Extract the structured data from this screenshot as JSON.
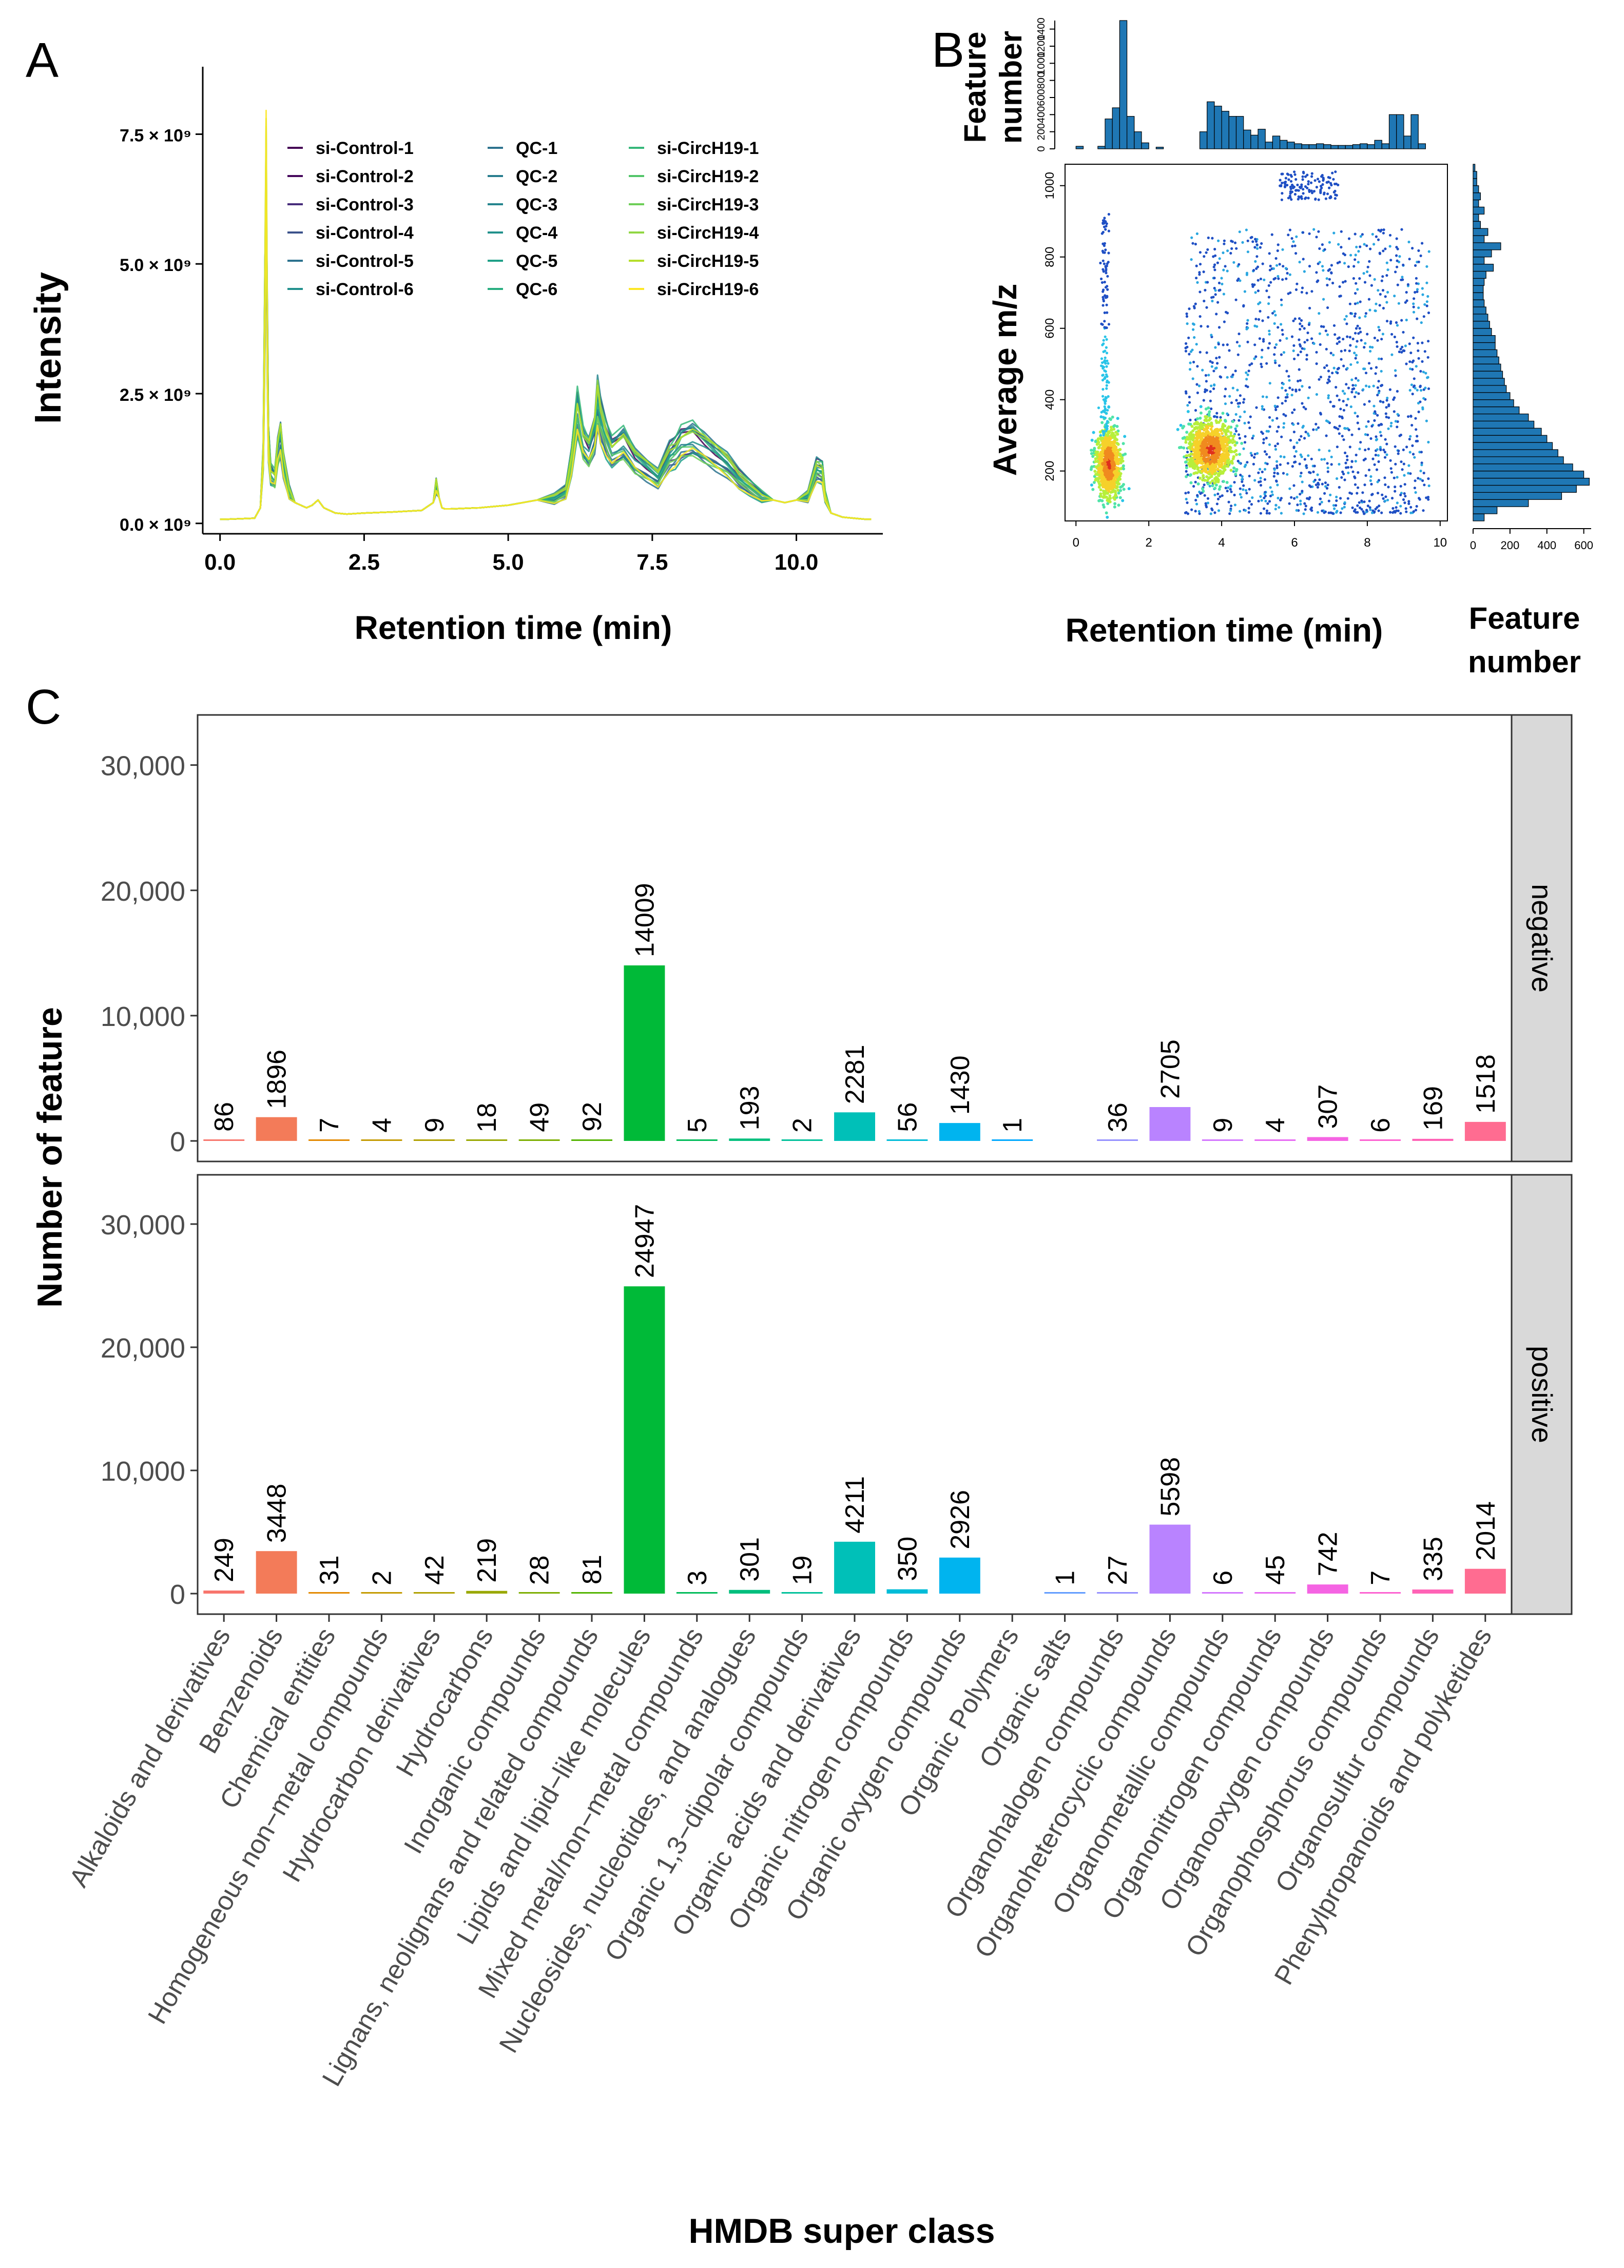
{
  "panels": {
    "a_label": "A",
    "b_label": "B",
    "c_label": "C"
  },
  "colors": {
    "purple_dark": "#440154",
    "purple": "#482878",
    "blue_dark": "#3e4989",
    "blue": "#31688e",
    "teal_dark": "#26828e",
    "teal": "#1f9e89",
    "green": "#35b779",
    "green_light": "#6ece58",
    "lime": "#b5de2b",
    "yellow": "#fde725",
    "hist_fill": "#1f77b4",
    "strip_bg": "#d9d9d9"
  },
  "chart_data": [
    {
      "id": "A",
      "type": "line",
      "title": "",
      "xlabel": "Retention time  (min)",
      "ylabel": "Intensity",
      "xlim": [
        -0.3,
        11.5
      ],
      "ylim": [
        -0.2,
        8.8
      ],
      "x_ticks": [
        0.0,
        2.5,
        5.0,
        7.5,
        10.0
      ],
      "x_tick_labels": [
        "0.0",
        "2.5",
        "5.0",
        "7.5",
        "10.0"
      ],
      "y_ticks": [
        0.0,
        2.5,
        5.0,
        7.5
      ],
      "y_tick_labels": [
        "0.0 × 10⁹",
        "2.5 × 10⁹",
        "5.0 × 10⁹",
        "7.5 × 10⁹"
      ],
      "y_unit": "× 10⁹",
      "legend": {
        "columns": [
          [
            "si-Control-1",
            "si-Control-2",
            "si-Control-3",
            "si-Control-4",
            "si-Control-5",
            "si-Control-6"
          ],
          [
            "QC-1",
            "QC-2",
            "QC-3",
            "QC-4",
            "QC-5",
            "QC-6"
          ],
          [
            "si-CircH19-1",
            "si-CircH19-2",
            "si-CircH19-3",
            "si-CircH19-4",
            "si-CircH19-5",
            "si-CircH19-6"
          ]
        ],
        "colors": [
          [
            "#440154",
            "#46085c",
            "#472d7b",
            "#3b528b",
            "#2c728e",
            "#21908d"
          ],
          [
            "#2c728e",
            "#287d8e",
            "#25858e",
            "#21918c",
            "#1fa088",
            "#28ae80"
          ],
          [
            "#35b779",
            "#52c569",
            "#6ece58",
            "#90d743",
            "#b5de2b",
            "#fde725"
          ]
        ]
      },
      "series_profile": {
        "x": [
          0.0,
          0.1,
          0.6,
          0.7,
          0.75,
          0.78,
          0.8,
          0.82,
          0.84,
          0.88,
          0.95,
          1.0,
          1.05,
          1.1,
          1.2,
          1.3,
          1.5,
          1.6,
          1.7,
          1.8,
          2.0,
          2.2,
          2.5,
          3.0,
          3.5,
          3.7,
          3.75,
          3.8,
          3.85,
          3.9,
          4.0,
          4.5,
          5.0,
          5.5,
          5.8,
          6.0,
          6.1,
          6.2,
          6.3,
          6.4,
          6.5,
          6.55,
          6.6,
          6.7,
          6.8,
          7.0,
          7.2,
          7.4,
          7.6,
          7.8,
          7.9,
          8.0,
          8.2,
          8.4,
          8.6,
          8.8,
          9.0,
          9.2,
          9.4,
          9.6,
          9.8,
          10.0,
          10.2,
          10.35,
          10.45,
          10.5,
          10.6,
          10.8,
          11.0,
          11.2,
          11.3
        ],
        "y": [
          0.08,
          0.08,
          0.1,
          0.3,
          1.5,
          5.0,
          7.8,
          4.0,
          1.8,
          1.1,
          1.0,
          1.6,
          1.9,
          1.3,
          0.7,
          0.4,
          0.3,
          0.35,
          0.45,
          0.3,
          0.2,
          0.18,
          0.2,
          0.22,
          0.25,
          0.4,
          0.85,
          0.5,
          0.3,
          0.28,
          0.28,
          0.3,
          0.35,
          0.45,
          0.55,
          0.7,
          1.4,
          2.5,
          1.8,
          1.6,
          2.0,
          2.7,
          2.3,
          1.9,
          1.6,
          1.8,
          1.4,
          1.2,
          1.0,
          1.5,
          1.6,
          1.8,
          1.9,
          1.7,
          1.5,
          1.3,
          1.0,
          0.8,
          0.6,
          0.45,
          0.4,
          0.45,
          0.6,
          1.2,
          1.15,
          0.6,
          0.2,
          0.12,
          0.1,
          0.08,
          0.08
        ]
      }
    },
    {
      "id": "B",
      "type": "scatter",
      "xlabel": "Retention time  (min)",
      "ylabel": "Average m/z",
      "xlim": [
        -0.3,
        10.2
      ],
      "ylim": [
        60,
        1060
      ],
      "x_ticks": [
        0,
        2,
        4,
        6,
        8,
        10
      ],
      "y_ticks": [
        200,
        400,
        600,
        800,
        1000
      ],
      "density_clusters": [
        {
          "rt": 0.9,
          "mz": 220,
          "sd_rt": 0.25,
          "sd_mz": 70
        },
        {
          "rt": 3.7,
          "mz": 260,
          "sd_rt": 0.45,
          "sd_mz": 60
        }
      ],
      "top_histogram": {
        "ylabel": "Feature number",
        "y_ticks": [
          0,
          200,
          400,
          600,
          800,
          1000,
          1200,
          1400
        ],
        "bin_width_min": 0.2,
        "counts": [
          30,
          0,
          0,
          30,
          350,
          480,
          1500,
          380,
          200,
          70,
          0,
          20,
          0,
          0,
          0,
          0,
          0,
          200,
          550,
          500,
          440,
          380,
          380,
          220,
          160,
          230,
          80,
          150,
          100,
          80,
          60,
          50,
          50,
          60,
          50,
          40,
          40,
          40,
          50,
          60,
          50,
          100,
          60,
          400,
          400,
          150,
          400,
          60
        ]
      },
      "right_histogram": {
        "xlabel": "Feature number",
        "x_ticks": [
          0,
          200,
          400,
          600
        ],
        "bin_width_mz": 20,
        "counts": [
          60,
          130,
          300,
          480,
          560,
          630,
          600,
          540,
          490,
          460,
          430,
          400,
          370,
          330,
          300,
          250,
          220,
          200,
          180,
          170,
          160,
          150,
          140,
          130,
          120,
          120,
          100,
          90,
          80,
          70,
          60,
          55,
          55,
          60,
          70,
          110,
          60,
          100,
          150,
          60,
          80,
          40,
          30,
          60,
          30,
          40,
          30,
          20,
          20,
          10
        ]
      },
      "right_axis_label_line1": "Feature",
      "right_axis_label_line2": "number",
      "top_axis_label_line1": "Feature",
      "top_axis_label_line2": "number"
    },
    {
      "id": "C",
      "type": "bar",
      "xlabel": "HMDB super class",
      "ylabel": "Number of feature",
      "ylim": [
        0,
        34000
      ],
      "y_ticks": [
        0,
        10000,
        20000,
        30000
      ],
      "y_tick_labels": [
        "0",
        "10,000",
        "20,000",
        "30,000"
      ],
      "categories": [
        "Alkaloids and derivatives",
        "Benzenoids",
        "Chemical entities",
        "Homogeneous non−metal compounds",
        "Hydrocarbon derivatives",
        "Hydrocarbons",
        "Inorganic compounds",
        "Lignans, neolignans and related compounds",
        "Lipids and lipid−like molecules",
        "Mixed metal/non−metal compounds",
        "Nucleosides, nucleotides, and analogues",
        "Organic 1,3−dipolar compounds",
        "Organic acids and derivatives",
        "Organic nitrogen compounds",
        "Organic oxygen compounds",
        "Organic Polymers",
        "Organic salts",
        "Organohalogen compounds",
        "Organoheterocyclic compounds",
        "Organometallic compounds",
        "Organonitrogen compounds",
        "Organooxygen compounds",
        "Organophosphorus compounds",
        "Organosulfur compounds",
        "Phenylpropanoids and polyketides"
      ],
      "bar_colors": [
        "#f8766d",
        "#f37b59",
        "#e38900",
        "#c49a00",
        "#b0a100",
        "#99a800",
        "#7cae00",
        "#53b400",
        "#00ba38",
        "#00bc59",
        "#00bf7d",
        "#00c19a",
        "#00c0b8",
        "#00bcd8",
        "#00b4ef",
        "#00a9ff",
        "#619cff",
        "#9590ff",
        "#b983ff",
        "#d376ff",
        "#e76bf3",
        "#f564e3",
        "#fd61d1",
        "#ff63b6",
        "#ff6c91"
      ],
      "series": [
        {
          "name": "negative",
          "values": [
            86,
            1896,
            7,
            4,
            9,
            18,
            49,
            92,
            14009,
            5,
            193,
            2,
            2281,
            56,
            1430,
            1,
            null,
            36,
            2705,
            9,
            4,
            307,
            6,
            169,
            1518
          ],
          "labels": [
            "86",
            "1896",
            "7",
            "4",
            "9",
            "18",
            "49",
            "92",
            "14009",
            "5",
            "193",
            "2",
            "2281",
            "56",
            "1430",
            "1",
            "",
            "36",
            "2705",
            "9",
            "4",
            "307",
            "6",
            "169",
            "1518"
          ]
        },
        {
          "name": "positive",
          "values": [
            249,
            3448,
            31,
            2,
            42,
            219,
            28,
            81,
            24947,
            3,
            301,
            19,
            4211,
            350,
            2926,
            null,
            1,
            27,
            5598,
            6,
            45,
            742,
            7,
            335,
            2014
          ],
          "labels": [
            "249",
            "3448",
            "31",
            "2",
            "42",
            "219",
            "28",
            "81",
            "24947",
            "3",
            "301",
            "19",
            "4211",
            "350",
            "2926",
            "",
            "1",
            "27",
            "5598",
            "6",
            "45",
            "742",
            "7",
            "335",
            "2014"
          ]
        }
      ]
    }
  ]
}
